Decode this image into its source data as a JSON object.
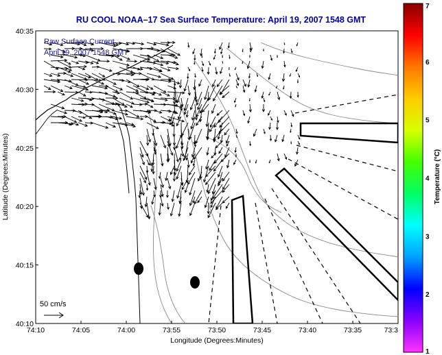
{
  "chart_data": {
    "type": "vector-field",
    "title": "RU COOL  NOAA–17  Sea Surface Temperature:  April 19, 2007 1548 GMT",
    "xlabel": "Longitude (Degrees:Minutes)",
    "ylabel": "Latitude (Degrees:Minutes)",
    "x_ticks": [
      "74:10",
      "74:05",
      "74:00",
      "73:55",
      "73:50",
      "73:45",
      "73:40",
      "73:35",
      "73:3"
    ],
    "y_ticks": [
      "40:10",
      "40:15",
      "40:20",
      "40:25",
      "40:30",
      "40:35"
    ],
    "xlim_min": [
      -74.1667,
      -73.5
    ],
    "ylim_min": [
      40.1667,
      40.5833
    ],
    "legend_lines": [
      "Raw Surface Current",
      "April 19, 2007 1548 GMT"
    ],
    "scale_label": "50 cm/s",
    "scale_arrow_cm_s": 50,
    "colorbar": {
      "label": "Temperature (°C)",
      "min": 1,
      "max": 7,
      "ticks": [
        "1",
        "2",
        "3",
        "4",
        "5",
        "6",
        "7"
      ],
      "colors": [
        "#ff33ff",
        "#8800ff",
        "#0000ff",
        "#00a0ff",
        "#00ffff",
        "#00ff66",
        "#44ff00",
        "#d8ff00",
        "#ffcc00",
        "#ff7700",
        "#ff0000",
        "#880000"
      ]
    },
    "grid": false,
    "legend_position": "top-left"
  }
}
